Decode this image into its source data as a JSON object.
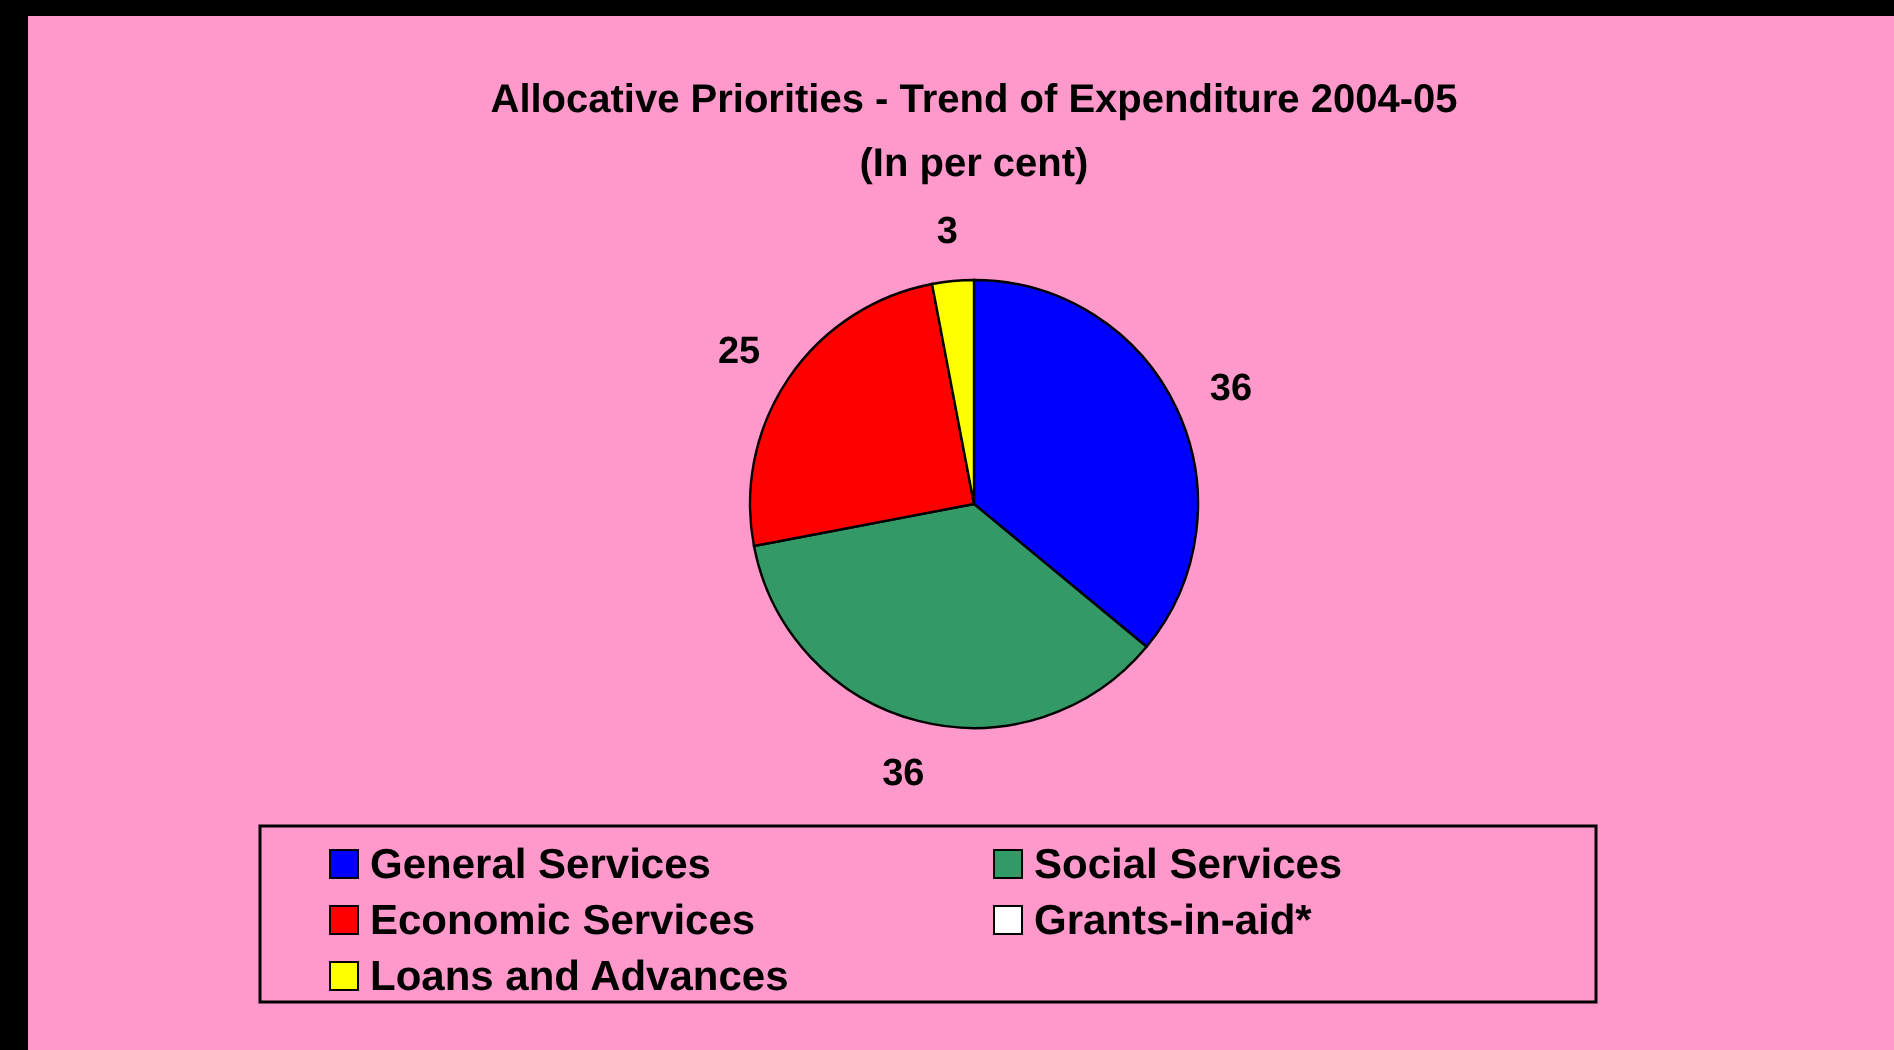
{
  "chart_data": {
    "type": "pie",
    "title": "Allocative Priorities - Trend of Expenditure 2004-05",
    "subtitle": "(In per cent)",
    "categories": [
      "General Services",
      "Social Services",
      "Economic Services",
      "Grants-in-aid*",
      "Loans and Advances"
    ],
    "values": [
      36,
      36,
      25,
      0,
      3
    ],
    "colors": [
      "#0000ff",
      "#339966",
      "#ff0000",
      "#ffffff",
      "#ffff00"
    ],
    "value_labels": [
      "36",
      "36",
      "25",
      null,
      "3"
    ],
    "legend": "bottom"
  }
}
